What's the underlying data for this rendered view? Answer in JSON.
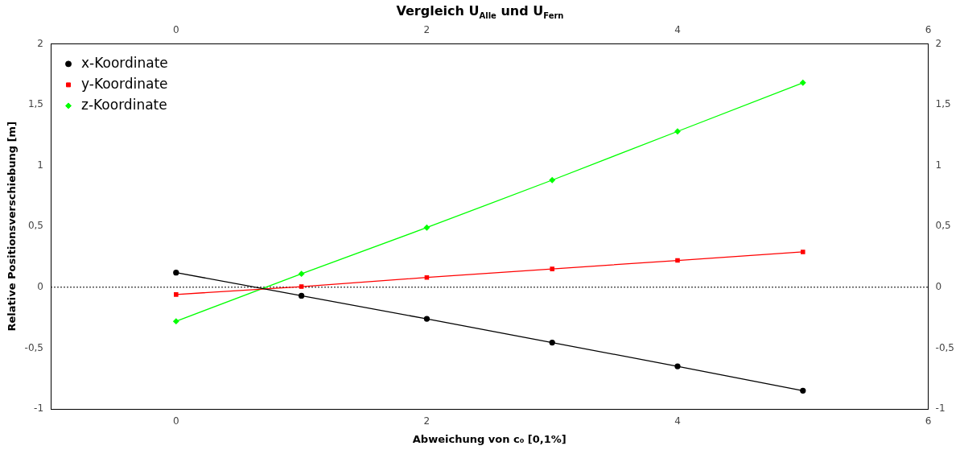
{
  "chart_data": {
    "type": "line",
    "title": "Vergleich U$_{Alle}$ und U$_{Fern}$",
    "xlabel": "Abweichung von c₀ [0,1%]",
    "ylabel": "Relative Positionsverschiebung [m]",
    "x": [
      0,
      1,
      2,
      3,
      4,
      5
    ],
    "series": [
      {
        "name": "x-Koordinate",
        "color": "#000000",
        "marker": "circle",
        "values": [
          0.12,
          -0.07,
          -0.26,
          -0.455,
          -0.65,
          -0.85
        ]
      },
      {
        "name": "y-Koordinate",
        "color": "#ff0000",
        "marker": "square",
        "values": [
          -0.06,
          0.005,
          0.08,
          0.15,
          0.22,
          0.29
        ]
      },
      {
        "name": "z-Koordinate",
        "color": "#00ff00",
        "marker": "diamond",
        "values": [
          -0.28,
          0.11,
          0.49,
          0.88,
          1.28,
          1.68
        ]
      }
    ],
    "xlim": [
      -1,
      6
    ],
    "xticks": [
      0,
      2,
      4,
      6
    ],
    "x2lim": [
      -1,
      6
    ],
    "x2ticks": [
      0,
      2,
      4,
      6
    ],
    "ylim": [
      -1,
      2
    ],
    "yticks": [
      -1,
      {
        "value": -0.5,
        "label": "-0,5"
      },
      0,
      {
        "value": 0.5,
        "label": "0,5"
      },
      1,
      {
        "value": 1.5,
        "label": "1,5"
      },
      2
    ],
    "y2lim": [
      -1,
      2
    ],
    "y2ticks": [
      -1,
      {
        "value": -0.5,
        "label": "-0,5"
      },
      0,
      {
        "value": 0.5,
        "label": "0,5"
      },
      1,
      {
        "value": 1.5,
        "label": "1,5"
      },
      2
    ],
    "ref_lines": [
      {
        "axis": "y",
        "value": 0,
        "color": "#000000",
        "line_style": "dotted"
      }
    ],
    "legend": "top left",
    "grid": false
  }
}
